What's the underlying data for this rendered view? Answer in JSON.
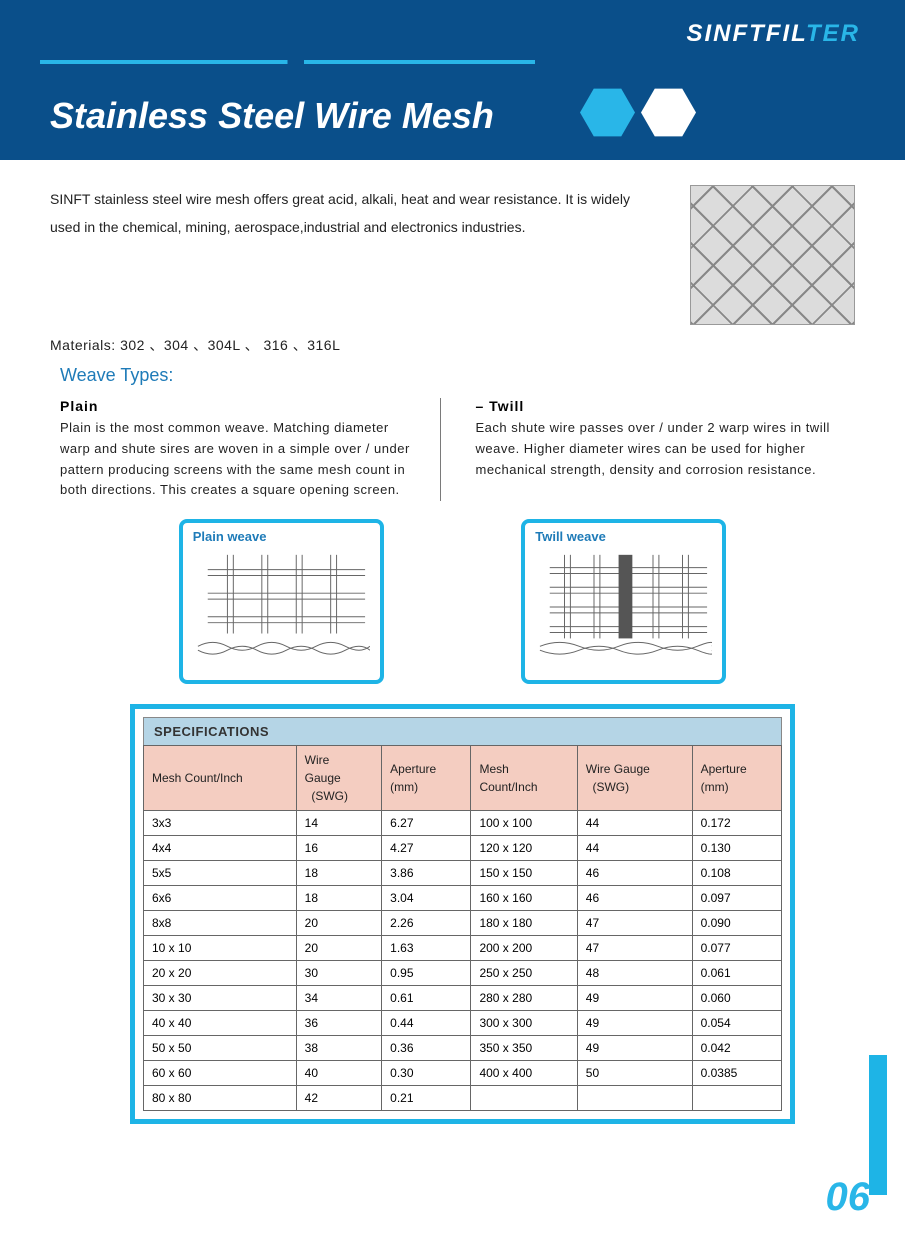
{
  "brand": {
    "part1": "SINFTFIL",
    "part2": "TER"
  },
  "page_title": "Stainless Steel Wire Mesh",
  "intro": "SINFT stainless steel wire mesh offers great acid, alkali, heat and wear resistance. It is widely used in the chemical, mining, aerospace,industrial and electronics industries.",
  "materials_label": "Materials: 302 、304 、304L 、 316 、316L",
  "weave_heading": "Weave Types:",
  "weaves": {
    "plain": {
      "name": "Plain",
      "desc": "Plain is the most common weave. Matching diameter warp and shute sires are woven in a simple over / under pattern producing screens with the same mesh count in both directions. This creates a square opening screen.",
      "diagram_label": "Plain weave"
    },
    "twill": {
      "name": "– Twill",
      "desc": "Each shute wire passes over / under 2 warp wires in twill weave. Higher diameter wires can be used for higher mechanical strength, density and corrosion resistance.",
      "diagram_label": "Twill weave"
    }
  },
  "spec": {
    "title": "SPECIFICATIONS",
    "columns": [
      "Mesh Count/Inch",
      "Wire Gauge (SWG)",
      "Aperture (mm)",
      "Mesh Count/Inch",
      "Wire Gauge (SWG)",
      "Aperture (mm)"
    ],
    "rows": [
      [
        "3x3",
        "14",
        "6.27",
        "100 x 100",
        "44",
        "0.172"
      ],
      [
        "4x4",
        "16",
        "4.27",
        "120 x 120",
        "44",
        "0.130"
      ],
      [
        "5x5",
        "18",
        "3.86",
        "150 x 150",
        "46",
        "0.108"
      ],
      [
        "6x6",
        "18",
        "3.04",
        "160 x 160",
        "46",
        "0.097"
      ],
      [
        "8x8",
        "20",
        "2.26",
        "180 x 180",
        "47",
        "0.090"
      ],
      [
        "10 x 10",
        "20",
        "1.63",
        "200 x 200",
        "47",
        "0.077"
      ],
      [
        "20 x 20",
        "30",
        "0.95",
        "250 x 250",
        "48",
        "0.061"
      ],
      [
        "30 x 30",
        "34",
        "0.61",
        "280 x 280",
        "49",
        "0.060"
      ],
      [
        "40 x 40",
        "36",
        "0.44",
        "300 x 300",
        "49",
        "0.054"
      ],
      [
        "50 x 50",
        "38",
        "0.36",
        "350 x 350",
        "49",
        "0.042"
      ],
      [
        "60 x 60",
        "40",
        "0.30",
        "400 x 400",
        "50",
        "0.0385"
      ],
      [
        "80 x 80",
        "42",
        "0.21",
        "",
        "",
        ""
      ]
    ],
    "header_bg": "#f4cdc1",
    "title_bg": "#b5d5e6",
    "border_color": "#1eb4e6"
  },
  "page_number": "06",
  "colors": {
    "header_bg": "#0a4f8a",
    "accent": "#29b6e8",
    "link": "#1e7bb8"
  }
}
